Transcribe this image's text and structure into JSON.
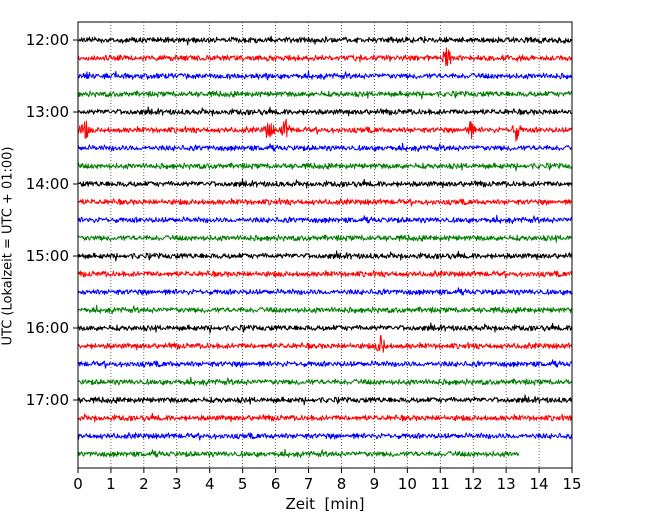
{
  "chart_data": {
    "type": "line",
    "title": "",
    "xlabel": "Zeit  [min]",
    "ylabel": "UTC (Lokalzeit = UTC + 01:00)",
    "xlim": [
      0,
      15
    ],
    "x_ticks": [
      "0",
      "1",
      "2",
      "3",
      "4",
      "5",
      "6",
      "7",
      "8",
      "9",
      "10",
      "11",
      "12",
      "13",
      "14",
      "15"
    ],
    "y_ticks": [
      "12:00",
      "13:00",
      "14:00",
      "15:00",
      "16:00",
      "17:00"
    ],
    "grid": "vertical dotted at each minute",
    "trace_interval_minutes": 15,
    "series_colors": [
      "#000000",
      "#ff0000",
      "#0000ff",
      "#008000"
    ],
    "traces": [
      {
        "start": "12:00",
        "color": "#000000",
        "end_min": 15
      },
      {
        "start": "12:15",
        "color": "#ff0000",
        "end_min": 15,
        "events_min": [
          11.2
        ]
      },
      {
        "start": "12:30",
        "color": "#0000ff",
        "end_min": 15
      },
      {
        "start": "12:45",
        "color": "#008000",
        "end_min": 15
      },
      {
        "start": "13:00",
        "color": "#000000",
        "end_min": 15
      },
      {
        "start": "13:15",
        "color": "#ff0000",
        "end_min": 15,
        "events_min": [
          0.2,
          5.8,
          6.3,
          11.9,
          13.3
        ]
      },
      {
        "start": "13:30",
        "color": "#0000ff",
        "end_min": 15
      },
      {
        "start": "13:45",
        "color": "#008000",
        "end_min": 15
      },
      {
        "start": "14:00",
        "color": "#000000",
        "end_min": 15
      },
      {
        "start": "14:15",
        "color": "#ff0000",
        "end_min": 15
      },
      {
        "start": "14:30",
        "color": "#0000ff",
        "end_min": 15
      },
      {
        "start": "14:45",
        "color": "#008000",
        "end_min": 15
      },
      {
        "start": "15:00",
        "color": "#000000",
        "end_min": 15
      },
      {
        "start": "15:15",
        "color": "#ff0000",
        "end_min": 15
      },
      {
        "start": "15:30",
        "color": "#0000ff",
        "end_min": 15
      },
      {
        "start": "15:45",
        "color": "#008000",
        "end_min": 15
      },
      {
        "start": "16:00",
        "color": "#000000",
        "end_min": 15
      },
      {
        "start": "16:15",
        "color": "#ff0000",
        "end_min": 15,
        "events_min": [
          9.2
        ]
      },
      {
        "start": "16:30",
        "color": "#0000ff",
        "end_min": 15
      },
      {
        "start": "16:45",
        "color": "#008000",
        "end_min": 15
      },
      {
        "start": "17:00",
        "color": "#000000",
        "end_min": 15
      },
      {
        "start": "17:15",
        "color": "#ff0000",
        "end_min": 15
      },
      {
        "start": "17:30",
        "color": "#0000ff",
        "end_min": 15
      },
      {
        "start": "17:45",
        "color": "#008000",
        "end_min": 13.4
      }
    ]
  }
}
